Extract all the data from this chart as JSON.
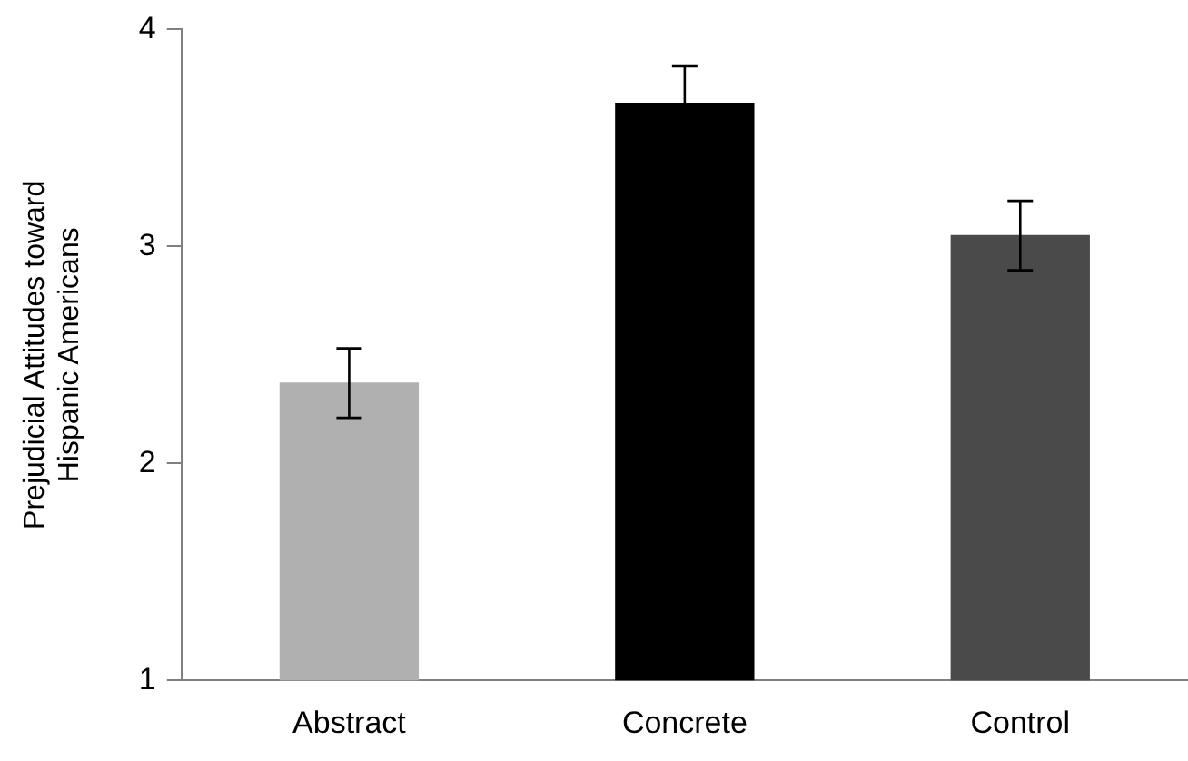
{
  "chart_data": {
    "type": "bar",
    "ylabel": "Prejudicial Attitudes toward Hispanic Americans",
    "categories": [
      "Abstract",
      "Concrete",
      "Control"
    ],
    "values": [
      2.37,
      3.66,
      3.05
    ],
    "colors": [
      "#b0b0b0",
      "#000000",
      "#4a4a4a"
    ],
    "errors": [
      0.16,
      0.17,
      0.16
    ],
    "ylim": [
      1,
      4
    ],
    "yticks": [
      1,
      2,
      3,
      4
    ],
    "grid": false
  }
}
